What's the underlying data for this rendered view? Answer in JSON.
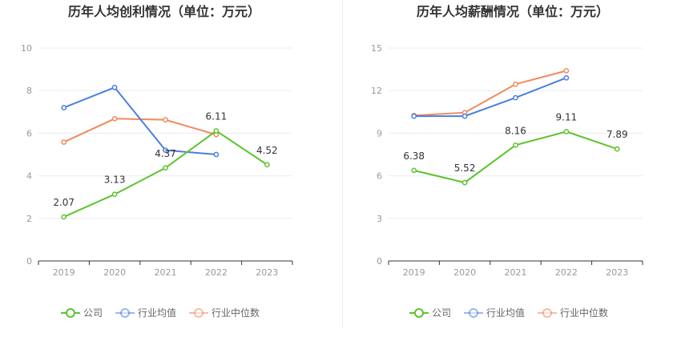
{
  "colors": {
    "company": "#5bc42d",
    "industry_avg": "#4a7fe0",
    "industry_median": "#f08a5d",
    "grid": "#e9ecf3",
    "axis": "#333333"
  },
  "chart_data": [
    {
      "type": "line",
      "title": "历年人均创利情况（单位：万元）",
      "categories": [
        "2019",
        "2020",
        "2021",
        "2022",
        "2023"
      ],
      "ylim": [
        0,
        10
      ],
      "yticks": [
        0,
        2,
        4,
        6,
        8,
        10
      ],
      "grid": true,
      "legend": "bottom",
      "series": [
        {
          "name": "公司",
          "key": "company",
          "values": [
            2.07,
            3.13,
            4.37,
            6.11,
            4.52
          ],
          "labels": [
            "2.07",
            "3.13",
            "4.37",
            "6.11",
            "4.52"
          ]
        },
        {
          "name": "行业均值",
          "key": "industry_avg",
          "values": [
            7.2,
            8.15,
            5.2,
            5.0,
            null
          ]
        },
        {
          "name": "行业中位数",
          "key": "industry_median",
          "values": [
            5.58,
            6.68,
            6.63,
            5.93,
            null
          ]
        }
      ]
    },
    {
      "type": "line",
      "title": "历年人均薪酬情况（单位：万元）",
      "categories": [
        "2019",
        "2020",
        "2021",
        "2022",
        "2023"
      ],
      "ylim": [
        0,
        15
      ],
      "yticks": [
        0,
        3,
        6,
        9,
        12,
        15
      ],
      "grid": true,
      "legend": "bottom",
      "series": [
        {
          "name": "公司",
          "key": "company",
          "values": [
            6.38,
            5.52,
            8.16,
            9.11,
            7.89
          ],
          "labels": [
            "6.38",
            "5.52",
            "8.16",
            "9.11",
            "7.89"
          ]
        },
        {
          "name": "行业均值",
          "key": "industry_avg",
          "values": [
            10.2,
            10.2,
            11.5,
            12.9,
            null
          ]
        },
        {
          "name": "行业中位数",
          "key": "industry_median",
          "values": [
            10.25,
            10.45,
            12.45,
            13.4,
            null
          ]
        }
      ]
    }
  ]
}
